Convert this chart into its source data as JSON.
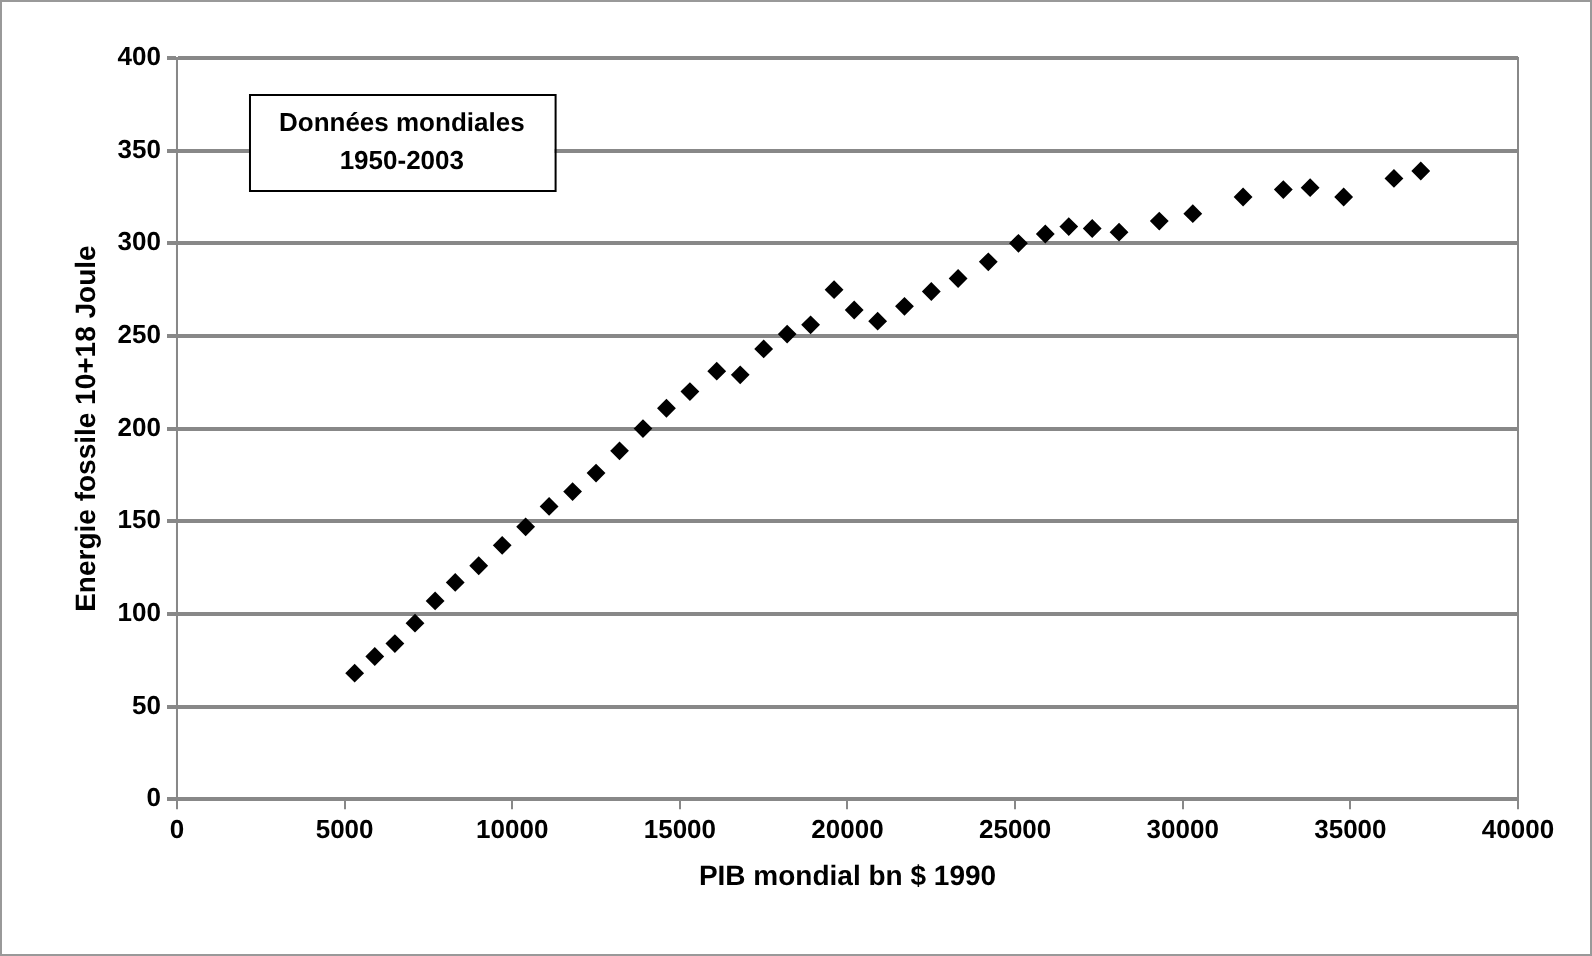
{
  "chart_data": {
    "type": "scatter",
    "xlabel": "PIB mondial bn $ 1990",
    "ylabel": "Energie fossile 10+18 Joule",
    "annotations": [
      "Données mondiales\n1950-2003"
    ],
    "x": [
      5300,
      5900,
      6500,
      7100,
      7700,
      8300,
      9000,
      9700,
      10400,
      11100,
      11800,
      12500,
      13200,
      13900,
      14600,
      15300,
      16100,
      16800,
      17500,
      18200,
      18900,
      19600,
      20200,
      20900,
      21700,
      22500,
      23300,
      24200,
      25100,
      25900,
      26600,
      27300,
      28100,
      29300,
      30300,
      31800,
      33000,
      33800,
      34800,
      36300,
      37100
    ],
    "series": [
      {
        "color": "#000000",
        "values": [
          68,
          77,
          84,
          95,
          107,
          117,
          126,
          137,
          147,
          158,
          166,
          176,
          188,
          200,
          211,
          220,
          231,
          229,
          243,
          251,
          256,
          275,
          264,
          258,
          266,
          274,
          281,
          290,
          300,
          305,
          309,
          308,
          306,
          312,
          316,
          325,
          329,
          330,
          325,
          335,
          339
        ]
      }
    ],
    "xlim": [
      0,
      40000
    ],
    "xticks": [
      0,
      5000,
      10000,
      15000,
      20000,
      25000,
      30000,
      35000,
      40000
    ],
    "ylim": [
      0,
      400
    ],
    "yticks": [
      0,
      50,
      100,
      150,
      200,
      250,
      300,
      350,
      400
    ],
    "grid": "y",
    "legend": false,
    "marker": "diamond"
  }
}
